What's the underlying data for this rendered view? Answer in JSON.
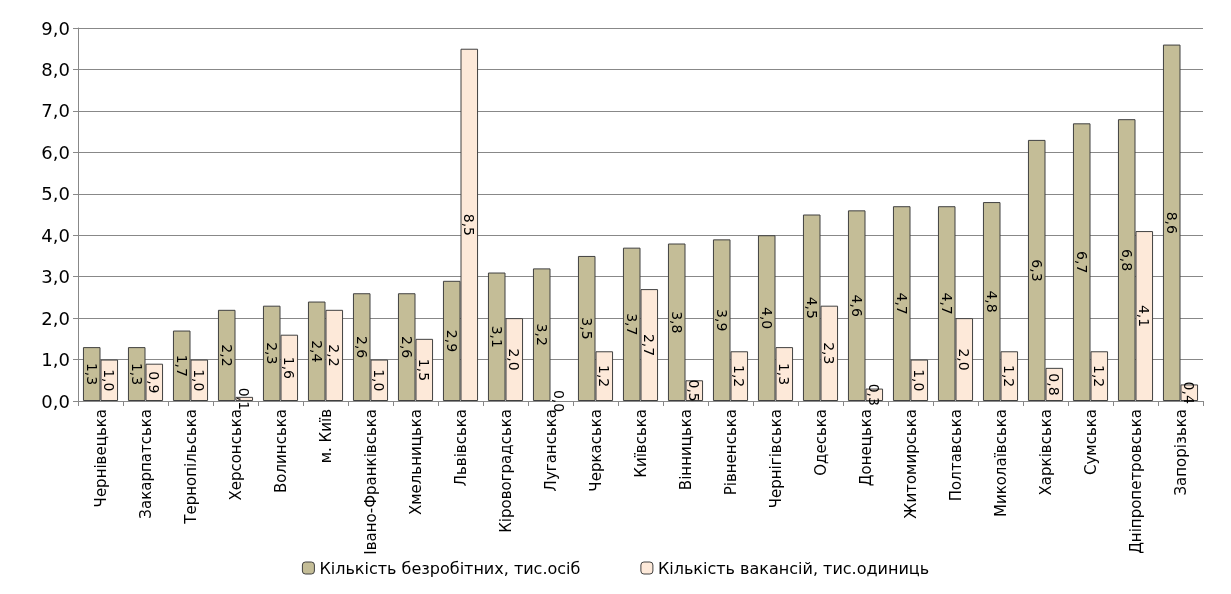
{
  "chart_data": {
    "type": "bar",
    "categories": [
      "Чернівецька",
      "Закарпатська",
      "Тернопільська",
      "Херсонська",
      "Волинська",
      "м. Київ",
      "Івано-Франківська",
      "Хмельницька",
      "Львівська",
      "Кіровоградська",
      "Луганська",
      "Черкаська",
      "Київська",
      "Вінницька",
      "Рівненська",
      "Чернігівська",
      "Одеська",
      "Донецька",
      "Житомирська",
      "Полтавська",
      "Миколаївська",
      "Харківська",
      "Сумська",
      "Дніпропетровська",
      "Запорізька"
    ],
    "series": [
      {
        "name": "Кількість безробітних, тис.осіб",
        "color": "#c4bd97",
        "values": [
          1.3,
          1.3,
          1.7,
          2.2,
          2.3,
          2.4,
          2.6,
          2.6,
          2.9,
          3.1,
          3.2,
          3.5,
          3.7,
          3.8,
          3.9,
          4.0,
          4.5,
          4.6,
          4.7,
          4.7,
          4.8,
          6.3,
          6.7,
          6.8,
          8.6
        ],
        "value_labels": [
          "1,3",
          "1,3",
          "1,7",
          "2,2",
          "2,3",
          "2,4",
          "2,6",
          "2,6",
          "2,9",
          "3,1",
          "3,2",
          "3,5",
          "3,7",
          "3,8",
          "3,9",
          "4,0",
          "4,5",
          "4,6",
          "4,7",
          "4,7",
          "4,8",
          "6,3",
          "6,7",
          "6,8",
          "8,6"
        ]
      },
      {
        "name": "Кількість вакансій, тис.одиниць",
        "color": "#fde9d9",
        "values": [
          1.0,
          0.9,
          1.0,
          0.1,
          1.6,
          2.2,
          1.0,
          1.5,
          8.5,
          2.0,
          0.0,
          1.2,
          2.7,
          0.5,
          1.2,
          1.3,
          2.3,
          0.3,
          1.0,
          2.0,
          1.2,
          0.8,
          1.2,
          4.1,
          0.4
        ],
        "value_labels": [
          "1,0",
          "0,9",
          "1,0",
          "0,1",
          "1,6",
          "2,2",
          "1,0",
          "1,5",
          "8,5",
          "2,0",
          "0,0",
          "1,2",
          "2,7",
          "0,5",
          "1,2",
          "1,3",
          "2,3",
          "0,3",
          "1,0",
          "2,0",
          "1,2",
          "0,8",
          "1,2",
          "4,1",
          "0,4"
        ]
      }
    ],
    "ylim": [
      0,
      9
    ],
    "yticks": [
      {
        "value": 0,
        "label": "0,0"
      },
      {
        "value": 1,
        "label": "1,0"
      },
      {
        "value": 2,
        "label": "2,0"
      },
      {
        "value": 3,
        "label": "3,0"
      },
      {
        "value": 4,
        "label": "4,0"
      },
      {
        "value": 5,
        "label": "5,0"
      },
      {
        "value": 6,
        "label": "6,0"
      },
      {
        "value": 7,
        "label": "7,0"
      },
      {
        "value": 8,
        "label": "8,0"
      },
      {
        "value": 9,
        "label": "9,0"
      }
    ],
    "grid": "y",
    "legend": "bottom"
  }
}
